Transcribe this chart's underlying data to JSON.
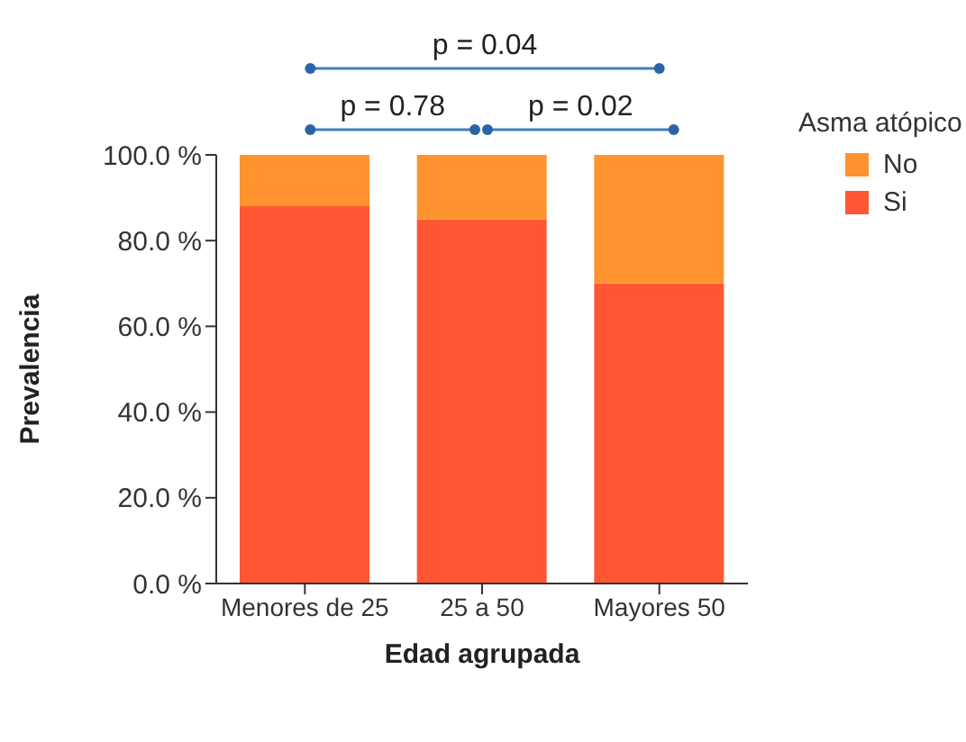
{
  "chart_data": {
    "type": "bar",
    "stacked": true,
    "xlabel": "Edad agrupada",
    "ylabel": "Prevalencia",
    "legend_title": "Asma atópico",
    "legend": "top right",
    "grid": false,
    "categories": [
      "Menores de 25",
      "25 a 50",
      "Mayores 50"
    ],
    "series": [
      {
        "name": "Si",
        "color": "#ff5733",
        "values": [
          88,
          85,
          70
        ]
      },
      {
        "name": "No",
        "color": "#ff9330",
        "values": [
          12,
          15,
          30
        ]
      }
    ],
    "ylim": [
      0,
      100
    ],
    "yticks": [
      {
        "value": 0,
        "label": "0.0 %"
      },
      {
        "value": 20,
        "label": "20.0 %"
      },
      {
        "value": 40,
        "label": "40.0 %"
      },
      {
        "value": 60,
        "label": "60.0 %"
      },
      {
        "value": 80,
        "label": "80.0 %"
      },
      {
        "value": 100,
        "label": "100.0 %"
      }
    ],
    "annotations": [
      "p = 0.04",
      "p = 0.78",
      "p = 0.02"
    ]
  }
}
